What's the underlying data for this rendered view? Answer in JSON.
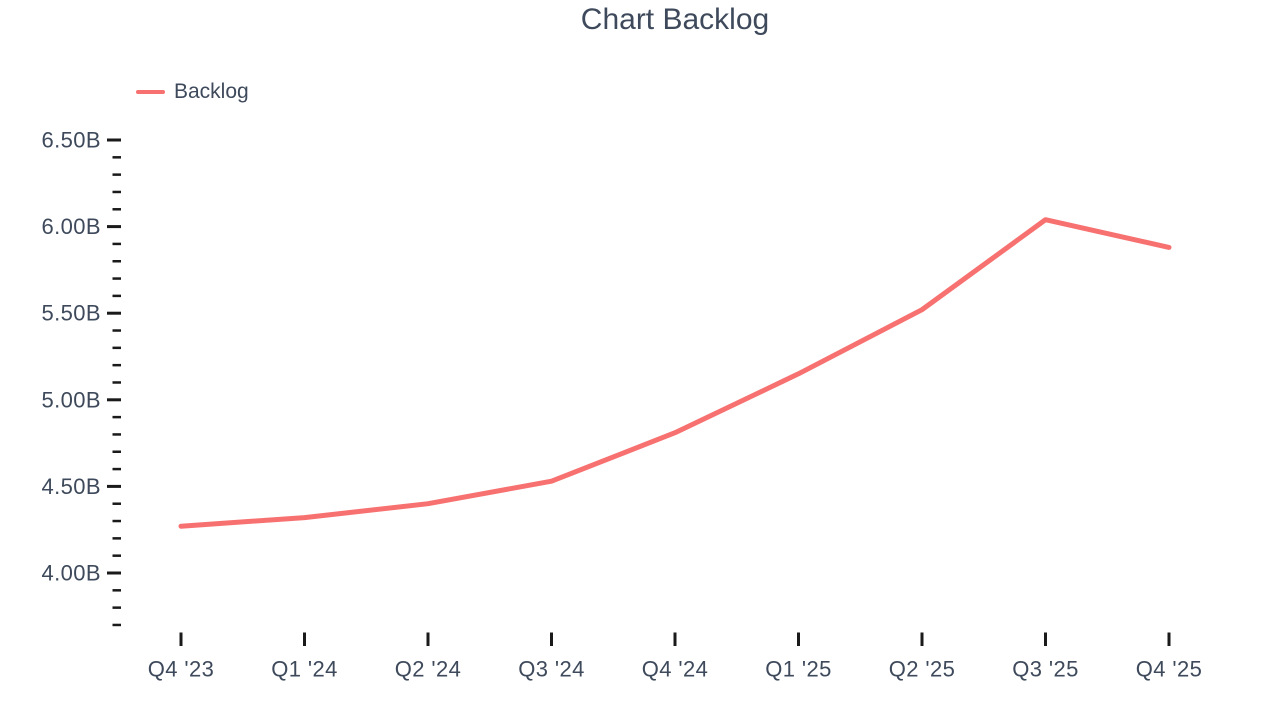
{
  "title": "Chart Backlog",
  "legend": {
    "items": [
      {
        "label": "Backlog",
        "color": "#F87171"
      }
    ]
  },
  "colors": {
    "line": "#F87171",
    "text": "#3E4A5B",
    "tick": "#1A1A1A",
    "background": "#FFFFFF"
  },
  "chart_data": {
    "type": "line",
    "title": "Chart Backlog",
    "categories": [
      "Q4 '23",
      "Q1 '24",
      "Q2 '24",
      "Q3 '24",
      "Q4 '24",
      "Q1 '25",
      "Q2 '25",
      "Q3 '25",
      "Q4 '25"
    ],
    "series": [
      {
        "name": "Backlog",
        "color": "#F87171",
        "values": [
          4.27,
          4.32,
          4.4,
          4.53,
          4.81,
          5.15,
          5.52,
          6.04,
          5.88
        ]
      }
    ],
    "value_unit": "B",
    "y_axis": {
      "tick_labels": [
        "6.50B",
        "6.00B",
        "5.50B",
        "5.00B",
        "4.50B",
        "4.00B"
      ],
      "major_tick_values": [
        6.5,
        6.0,
        5.5,
        5.0,
        4.5,
        4.0
      ],
      "minor_tick_step": 0.1,
      "range": [
        3.7,
        6.5
      ]
    },
    "xlabel": "",
    "ylabel": "",
    "grid": false,
    "axis_lines": false,
    "legend_position": "top-left"
  }
}
